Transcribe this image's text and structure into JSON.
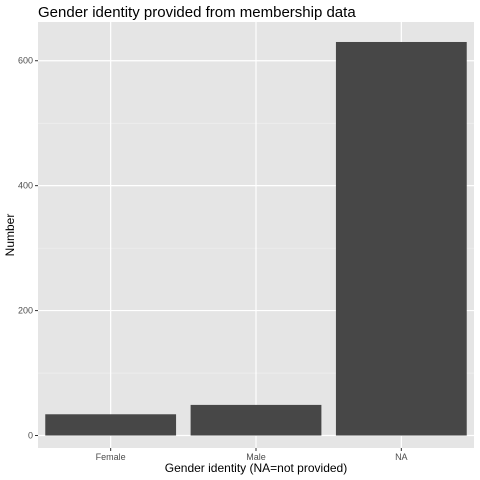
{
  "chart_data": {
    "type": "bar",
    "title": "Gender identity provided from membership data",
    "xlabel": "Gender identity (NA=not provided)",
    "ylabel": "Number",
    "categories": [
      "Female",
      "Male",
      "NA"
    ],
    "values": [
      34,
      49,
      630
    ],
    "ylim": [
      -20,
      662
    ],
    "yticks": [
      0,
      200,
      400,
      600
    ],
    "grid": true,
    "colors": {
      "panel": "#e5e5e5",
      "grid_major": "#ffffff",
      "bar": "#474747",
      "tick": "#333333"
    }
  }
}
